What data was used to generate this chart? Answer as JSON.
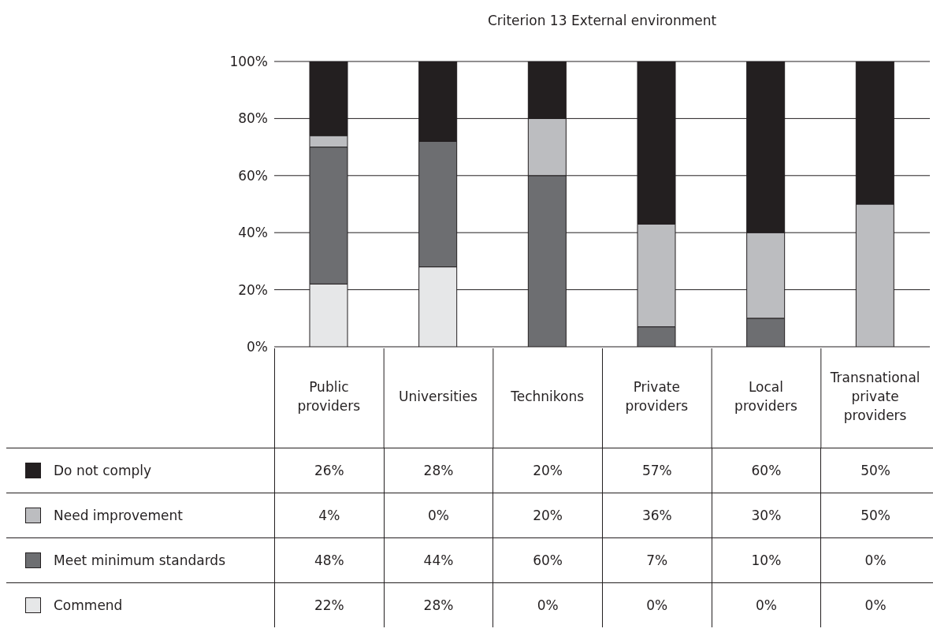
{
  "chart_data": {
    "type": "bar",
    "title": "Criterion 13 External environment",
    "stacked": true,
    "categories": [
      "Public providers",
      "Universities",
      "Technikons",
      "Private providers",
      "Local providers",
      "Transnational private providers"
    ],
    "series": [
      {
        "name": "Commend",
        "color": "#e6e7e8",
        "values": [
          22,
          28,
          0,
          0,
          0,
          0
        ],
        "value_labels": [
          "22%",
          "28%",
          "0%",
          "0%",
          "0%",
          "0%"
        ]
      },
      {
        "name": "Meet minimum standards",
        "color": "#6d6e71",
        "values": [
          48,
          44,
          60,
          7,
          10,
          0
        ],
        "value_labels": [
          "48%",
          "44%",
          "60%",
          "7%",
          "10%",
          "0%"
        ]
      },
      {
        "name": "Need improvement",
        "color": "#bcbdc0",
        "values": [
          4,
          0,
          20,
          36,
          30,
          50
        ],
        "value_labels": [
          "4%",
          "0%",
          "20%",
          "36%",
          "30%",
          "50%"
        ]
      },
      {
        "name": "Do not comply",
        "color": "#231f20",
        "values": [
          26,
          28,
          20,
          57,
          60,
          50
        ],
        "value_labels": [
          "26%",
          "28%",
          "20%",
          "57%",
          "60%",
          "50%"
        ]
      }
    ],
    "ylim": [
      0,
      100
    ],
    "yticks": [
      {
        "value": 0,
        "label": "0%"
      },
      {
        "value": 20,
        "label": "20%"
      },
      {
        "value": 40,
        "label": "40%"
      },
      {
        "value": 60,
        "label": "60%"
      },
      {
        "value": 80,
        "label": "80%"
      },
      {
        "value": 100,
        "label": "100%"
      }
    ],
    "grid": "y",
    "legend": "bottom"
  }
}
